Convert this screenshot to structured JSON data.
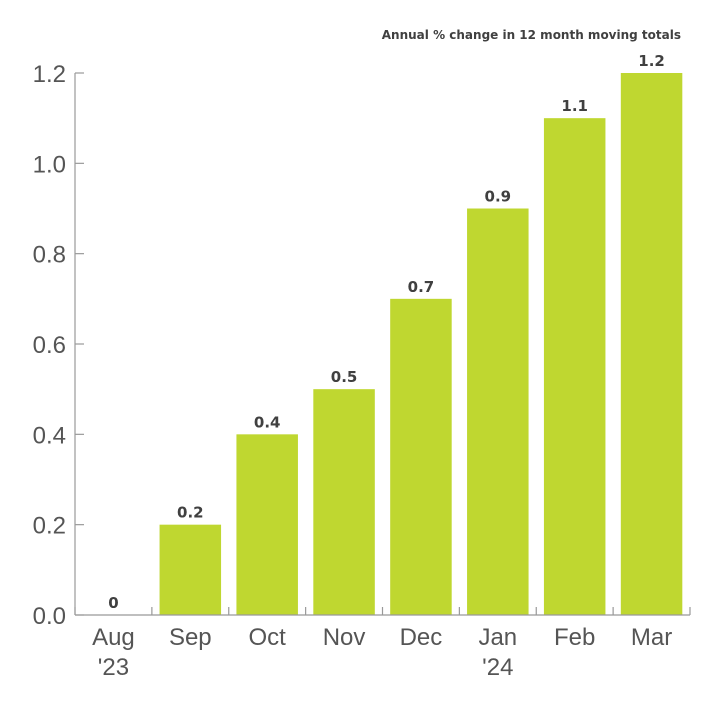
{
  "chart_data": {
    "type": "bar",
    "title": "",
    "subtitle": "Annual % change in 12 month moving totals",
    "xlabel": "",
    "ylabel": "",
    "categories": [
      {
        "line1": "Aug",
        "line2": "'23"
      },
      {
        "line1": "Sep",
        "line2": ""
      },
      {
        "line1": "Oct",
        "line2": ""
      },
      {
        "line1": "Nov",
        "line2": ""
      },
      {
        "line1": "Dec",
        "line2": ""
      },
      {
        "line1": "Jan",
        "line2": "'24"
      },
      {
        "line1": "Feb",
        "line2": ""
      },
      {
        "line1": "Mar",
        "line2": ""
      }
    ],
    "values": [
      0,
      0.2,
      0.4,
      0.5,
      0.7,
      0.9,
      1.1,
      1.2
    ],
    "value_labels": [
      "0",
      "0.2",
      "0.4",
      "0.5",
      "0.7",
      "0.9",
      "1.1",
      "1.2"
    ],
    "ylim": [
      0,
      1.2
    ],
    "yticks": [
      0,
      0.2,
      0.4,
      0.6,
      0.8,
      1.0,
      1.2
    ],
    "ytick_labels": [
      "0.0",
      "0.2",
      "0.4",
      "0.6",
      "0.8",
      "1.0",
      "1.2"
    ],
    "grid": false,
    "bar_color": "#bfd730",
    "axis_color": "#999999",
    "text_color": "#555555"
  }
}
